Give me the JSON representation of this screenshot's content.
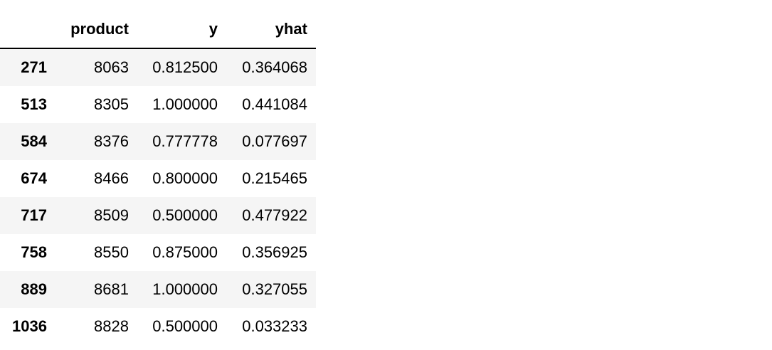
{
  "table": {
    "columns": [
      "",
      "product",
      "y",
      "yhat"
    ],
    "rows": [
      {
        "index": "271",
        "product": "8063",
        "y": "0.812500",
        "yhat": "0.364068"
      },
      {
        "index": "513",
        "product": "8305",
        "y": "1.000000",
        "yhat": "0.441084"
      },
      {
        "index": "584",
        "product": "8376",
        "y": "0.777778",
        "yhat": "0.077697"
      },
      {
        "index": "674",
        "product": "8466",
        "y": "0.800000",
        "yhat": "0.215465"
      },
      {
        "index": "717",
        "product": "8509",
        "y": "0.500000",
        "yhat": "0.477922"
      },
      {
        "index": "758",
        "product": "8550",
        "y": "0.875000",
        "yhat": "0.356925"
      },
      {
        "index": "889",
        "product": "8681",
        "y": "1.000000",
        "yhat": "0.327055"
      },
      {
        "index": "1036",
        "product": "8828",
        "y": "0.500000",
        "yhat": "0.033233"
      }
    ]
  }
}
